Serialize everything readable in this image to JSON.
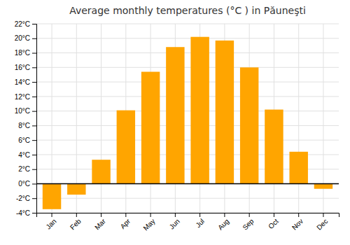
{
  "chart_data": {
    "type": "bar",
    "title": "Average monthly temperatures (°C ) in Păuneşti",
    "categories": [
      "Jan",
      "Feb",
      "Mar",
      "Apr",
      "May",
      "Jun",
      "Jul",
      "Aug",
      "Sep",
      "Oct",
      "Nov",
      "Dec"
    ],
    "values": [
      -3.5,
      -1.5,
      3.3,
      10.1,
      15.4,
      18.8,
      20.2,
      19.7,
      16.0,
      10.2,
      4.4,
      -0.7
    ],
    "color": "#FFA500",
    "ylim": [
      -4,
      22
    ],
    "yticks": [
      {
        "value": -4,
        "label": "-4°C"
      },
      {
        "value": -2,
        "label": "-2°C"
      },
      {
        "value": 0,
        "label": "0°C"
      },
      {
        "value": 2,
        "label": "2°C"
      },
      {
        "value": 4,
        "label": "4°C"
      },
      {
        "value": 6,
        "label": "6°C"
      },
      {
        "value": 8,
        "label": "8°C"
      },
      {
        "value": 10,
        "label": "10°C"
      },
      {
        "value": 12,
        "label": "12°C"
      },
      {
        "value": 14,
        "label": "14°C"
      },
      {
        "value": 16,
        "label": "16°C"
      },
      {
        "value": 18,
        "label": "18°C"
      },
      {
        "value": 20,
        "label": "20°C"
      },
      {
        "value": 22,
        "label": "22°C"
      }
    ],
    "grid": true
  }
}
